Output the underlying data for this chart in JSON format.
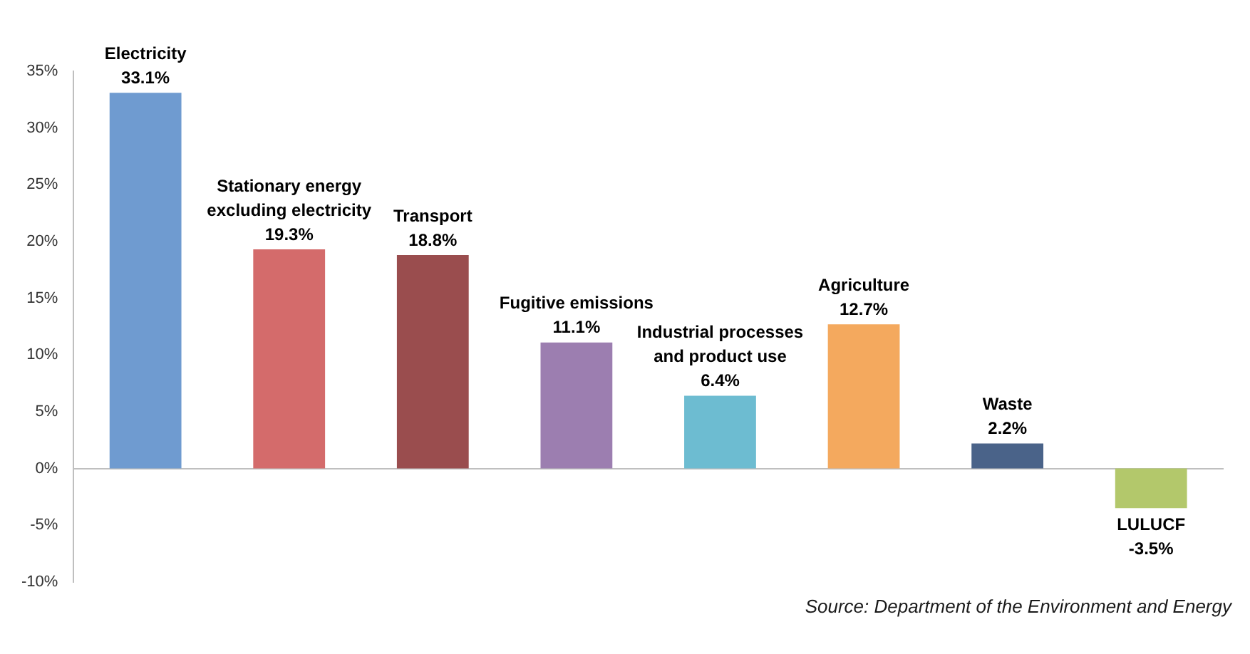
{
  "chart_data": {
    "type": "bar",
    "categories": [
      "Electricity",
      "Stationary energy excluding electricity",
      "Transport",
      "Fugitive emissions",
      "Industrial processes and product use",
      "Agriculture",
      "Waste",
      "LULUCF"
    ],
    "values": [
      33.1,
      19.3,
      18.8,
      11.1,
      6.4,
      12.7,
      2.2,
      -3.5
    ],
    "colors": [
      "#6f9bd0",
      "#d46b6b",
      "#9a4d4e",
      "#9c7eb0",
      "#6dbcd1",
      "#f4a95e",
      "#4a6389",
      "#b3c86b"
    ],
    "value_labels": [
      "33.1%",
      "19.3%",
      "18.8%",
      "11.1%",
      "6.4%",
      "12.7%",
      "2.2%",
      "-3.5%"
    ],
    "ylim": [
      -10,
      35
    ],
    "yticks": [
      {
        "value": -10,
        "label": "-10%"
      },
      {
        "value": -5,
        "label": "-5%"
      },
      {
        "value": 0,
        "label": "0%"
      },
      {
        "value": 5,
        "label": "5%"
      },
      {
        "value": 10,
        "label": "10%"
      },
      {
        "value": 15,
        "label": "15%"
      },
      {
        "value": 20,
        "label": "20%"
      },
      {
        "value": 25,
        "label": "25%"
      },
      {
        "value": 30,
        "label": "30%"
      },
      {
        "value": 35,
        "label": "35%"
      }
    ],
    "tick_labels": "y",
    "legend": false,
    "annotations": [
      "Source: Department of the Environment and Energy"
    ]
  }
}
